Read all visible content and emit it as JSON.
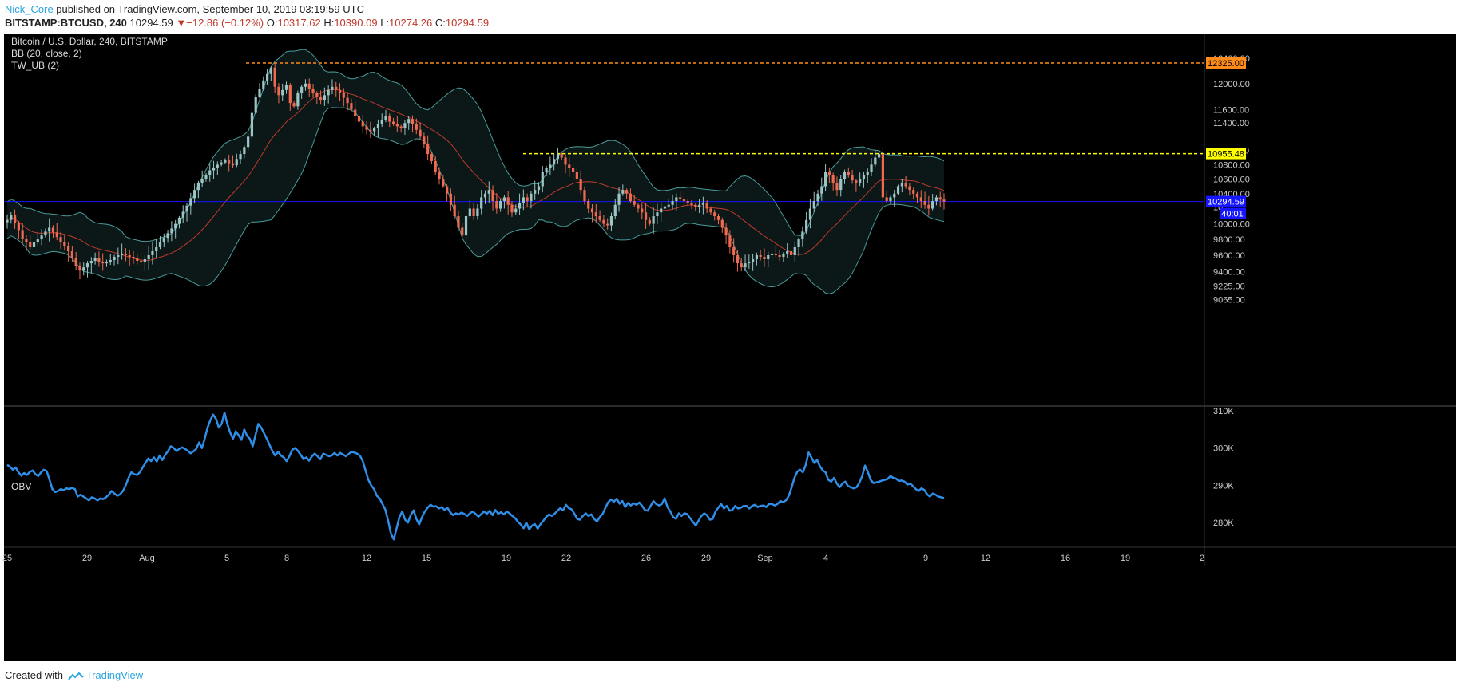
{
  "header": {
    "author": "Nick_Core",
    "published_text": " published on TradingView.com, September 10, 2019 03:19:59 UTC",
    "symbol": "BITSTAMP:BTCUSD, 240",
    "last": "10294.59",
    "change_arrow": "▼",
    "change": "−12.86 (−0.12%)",
    "o_label": "O:",
    "o_value": "10317.62",
    "h_label": "H:",
    "h_value": "10390.09",
    "l_label": "L:",
    "l_value": "10274.26",
    "c_label": "C:",
    "c_value": "10294.59"
  },
  "overlay": {
    "title": "Bitcoin / U.S. Dollar, 240, BITSTAMP",
    "bb": "BB (20, close, 2)",
    "tw": "TW_UB (2)",
    "obv": "OBV"
  },
  "footer": {
    "created_with": "Created with",
    "brand": "TradingView"
  },
  "colors": {
    "background": "#000000",
    "up_candle": "#9bc4c4",
    "down_candle": "#ef6a50",
    "bb_band": "#4a9a9a",
    "bb_basis": "#c0392b",
    "resistance_high": "#ff8c1a",
    "resistance_mid": "#ffff00",
    "last_price": "#1515ff",
    "obv_line": "#2f8fe8",
    "axis_text": "#cccccc"
  },
  "chart_data": [
    {
      "type": "candlestick",
      "title": "Bitcoin / U.S. Dollar, 240, BITSTAMP",
      "y_axis_ticks": [
        "12400.00",
        "12000.00",
        "11600.00",
        "11400.00",
        "11000.00",
        "10800.00",
        "10600.00",
        "10400.00",
        "10200.00",
        "10000.00",
        "9800.00",
        "9600.00",
        "9400.00",
        "9225.00",
        "9065.00"
      ],
      "y_axis_tick_values": [
        12400,
        12000,
        11600,
        11400,
        11000,
        10800,
        10600,
        10400,
        10200,
        10000,
        9800,
        9600,
        9400,
        9225,
        9065
      ],
      "ylim": [
        9000,
        12500
      ],
      "x_axis_ticks": [
        "25",
        "29",
        "Aug",
        "5",
        "8",
        "12",
        "15",
        "19",
        "22",
        "26",
        "29",
        "Sep",
        "4",
        "9",
        "12",
        "16",
        "19",
        "2"
      ],
      "price_labels": {
        "resistance_high": 12325.0,
        "resistance_mid": 10955.48,
        "last": 10294.59,
        "countdown": "40:01"
      },
      "price_label_text": {
        "resistance_high": "12325.00",
        "resistance_mid": "10955.48",
        "last": "10294.59",
        "countdown": "40:01"
      },
      "closes": [
        10050,
        10120,
        10010,
        9920,
        9810,
        9760,
        9700,
        9760,
        9800,
        9850,
        9900,
        9950,
        9890,
        9830,
        9760,
        9720,
        9650,
        9560,
        9470,
        9410,
        9450,
        9500,
        9530,
        9560,
        9520,
        9500,
        9510,
        9540,
        9580,
        9600,
        9620,
        9600,
        9580,
        9560,
        9530,
        9510,
        9550,
        9600,
        9650,
        9700,
        9760,
        9820,
        9880,
        9940,
        10000,
        10080,
        10160,
        10240,
        10340,
        10450,
        10540,
        10600,
        10660,
        10720,
        10760,
        10800,
        10830,
        10860,
        10820,
        10790,
        10880,
        10950,
        11050,
        11200,
        11550,
        11800,
        11920,
        12050,
        12150,
        12250,
        11950,
        11820,
        11900,
        11980,
        11700,
        11650,
        11850,
        11950,
        12000,
        11920,
        11850,
        11800,
        11750,
        11820,
        11900,
        11950,
        11900,
        11850,
        11780,
        11700,
        11600,
        11500,
        11420,
        11350,
        11300,
        11280,
        11320,
        11380,
        11450,
        11500,
        11420,
        11380,
        11350,
        11320,
        11400,
        11460,
        11380,
        11300,
        11200,
        11100,
        10950,
        10850,
        10700,
        10600,
        10500,
        10400,
        10250,
        10100,
        9950,
        9850,
        10100,
        10200,
        10100,
        10200,
        10350,
        10400,
        10450,
        10300,
        10200,
        10300,
        10350,
        10250,
        10150,
        10200,
        10280,
        10350,
        10300,
        10400,
        10450,
        10500,
        10700,
        10750,
        10800,
        10880,
        10950,
        10900,
        10800,
        10750,
        10700,
        10600,
        10450,
        10300,
        10200,
        10150,
        10100,
        10050,
        10000,
        9980,
        10100,
        10250,
        10400,
        10450,
        10400,
        10300,
        10250,
        10200,
        10150,
        10050,
        10000,
        10100,
        10150,
        10200,
        10230,
        10250,
        10300,
        10350,
        10330,
        10300,
        10280,
        10250,
        10220,
        10250,
        10280,
        10200,
        10150,
        10100,
        10050,
        9950,
        9850,
        9700,
        9600,
        9500,
        9450,
        9500,
        9520,
        9550,
        9600,
        9580,
        9550,
        9600,
        9620,
        9600,
        9580,
        9620,
        9650,
        9600,
        9700,
        9800,
        9900,
        10050,
        10200,
        10300,
        10400,
        10500,
        10700,
        10650,
        10550,
        10450,
        10600,
        10700,
        10650,
        10580,
        10550,
        10600,
        10650,
        10700,
        10800,
        10900,
        10950,
        10350,
        10300,
        10350,
        10400,
        10500,
        10550,
        10500,
        10450,
        10400,
        10350,
        10300,
        10250,
        10200,
        10300,
        10350,
        10320,
        10294.59
      ],
      "series": [
        {
          "name": "BB (20, close, 2)"
        },
        {
          "name": "TW_UB (2)"
        }
      ]
    },
    {
      "type": "line",
      "title": "OBV",
      "y_axis_ticks": [
        "310K",
        "300K",
        "290K",
        "280K"
      ],
      "y_axis_tick_values": [
        310,
        300,
        290,
        280
      ],
      "ylim": [
        273,
        311
      ],
      "values": [
        295.5,
        295,
        294.2,
        294.8,
        293.5,
        292.6,
        293.3,
        292.8,
        293.6,
        294,
        293,
        292.5,
        293.5,
        294.2,
        293.8,
        291.5,
        289,
        288.2,
        288.5,
        289,
        288.7,
        289.2,
        289,
        289.3,
        289,
        287,
        287.5,
        287,
        286.5,
        286,
        286.8,
        286.5,
        286,
        286.5,
        286.3,
        286.8,
        287.5,
        288.5,
        287.8,
        287.2,
        287.6,
        288.5,
        290,
        292,
        293.5,
        293,
        292.8,
        293.5,
        294.8,
        296,
        297.2,
        296.5,
        297.5,
        296.4,
        298,
        296.8,
        298.2,
        299.2,
        300.5,
        300,
        299.2,
        299.8,
        300.2,
        299.8,
        299.3,
        298.6,
        299.1,
        299.8,
        301.5,
        300,
        302.5,
        305.5,
        307.5,
        309,
        307.8,
        305.5,
        306.5,
        309.5,
        306.5,
        304.2,
        302.5,
        304.5,
        303.5,
        302.2,
        305,
        303.3,
        302.5,
        300.5,
        303.5,
        306.5,
        305.5,
        304,
        302.5,
        300.8,
        299.2,
        298,
        299,
        298,
        297.5,
        296.5,
        297.8,
        299.5,
        300,
        299.3,
        298.2,
        297,
        297.5,
        296.6,
        297.8,
        298.5,
        297.8,
        297,
        298.5,
        298.2,
        297.8,
        298,
        298.7,
        298,
        298.7,
        298.3,
        297.8,
        298.4,
        299,
        298.8,
        298.5,
        298,
        296.5,
        294,
        291.5,
        290,
        289,
        287.2,
        286.5,
        285,
        283.5,
        280.5,
        277,
        275.5,
        278.5,
        281.5,
        283,
        280.8,
        280,
        282,
        283.3,
        281,
        279.5,
        281.5,
        283,
        284,
        284.8,
        284.3,
        284.4,
        283.8,
        284.2,
        283.4,
        284,
        282.8,
        282,
        282.5,
        282.2,
        282.7,
        282.3,
        281.8,
        282.5,
        283,
        282.3,
        281.6,
        282.3,
        283,
        282.4,
        283.2,
        282,
        283.4,
        282.4,
        282.8,
        282.2,
        283,
        282.5,
        281.8,
        281.2,
        280.2,
        279.5,
        278.5,
        280,
        278.2,
        279.2,
        279.6,
        278.4,
        279.6,
        280.5,
        281.5,
        282.2,
        281.8,
        282.4,
        283.2,
        283.9,
        283.3,
        284.8,
        283.9,
        283.6,
        282.4,
        281,
        280.8,
        281.8,
        282.5,
        281.8,
        282.2,
        281,
        280.3,
        281.5,
        282.3,
        284,
        285.5,
        286.2,
        285.6,
        286.4,
        285.1,
        285.8,
        284.2,
        285.3,
        284.6,
        285.2,
        284.8,
        285.4,
        284.5,
        283.4,
        283.2,
        284.5,
        285.8,
        285,
        284.6,
        285,
        286.5,
        284.2,
        283,
        281.5,
        281,
        282.5,
        281.8,
        282.5,
        282.3,
        281.2,
        280.2,
        279.2,
        280.5,
        281.8,
        282.5,
        282,
        280.8,
        281,
        283,
        284,
        285,
        283.8,
        284.5,
        283.2,
        283.4,
        284.5,
        283.8,
        284,
        284.5,
        284.5,
        283.8,
        284.5,
        284.8,
        284.2,
        284.5,
        284.6,
        284.2,
        285,
        285,
        284.6,
        285,
        285.8,
        285.5,
        286,
        287.2,
        289.5,
        292,
        293.7,
        294.2,
        293.5,
        295.5,
        298.8,
        297.5,
        296,
        296.8,
        295.2,
        294,
        293.5,
        291.5,
        291,
        292,
        290.5,
        289.5,
        290.5,
        291,
        289.8,
        289.5,
        289.2,
        289.5,
        290.7,
        292.5,
        295.3,
        293.6,
        291.5,
        290.6,
        290.8,
        291,
        291.3,
        291.5,
        291.7,
        292.5,
        292,
        291.8,
        291.2,
        291.3,
        291,
        290.2,
        290.5,
        289.8,
        289,
        288.5,
        289.2,
        288.8,
        287.6,
        287,
        287.8,
        287.5,
        287,
        286.8,
        286.6
      ]
    }
  ]
}
